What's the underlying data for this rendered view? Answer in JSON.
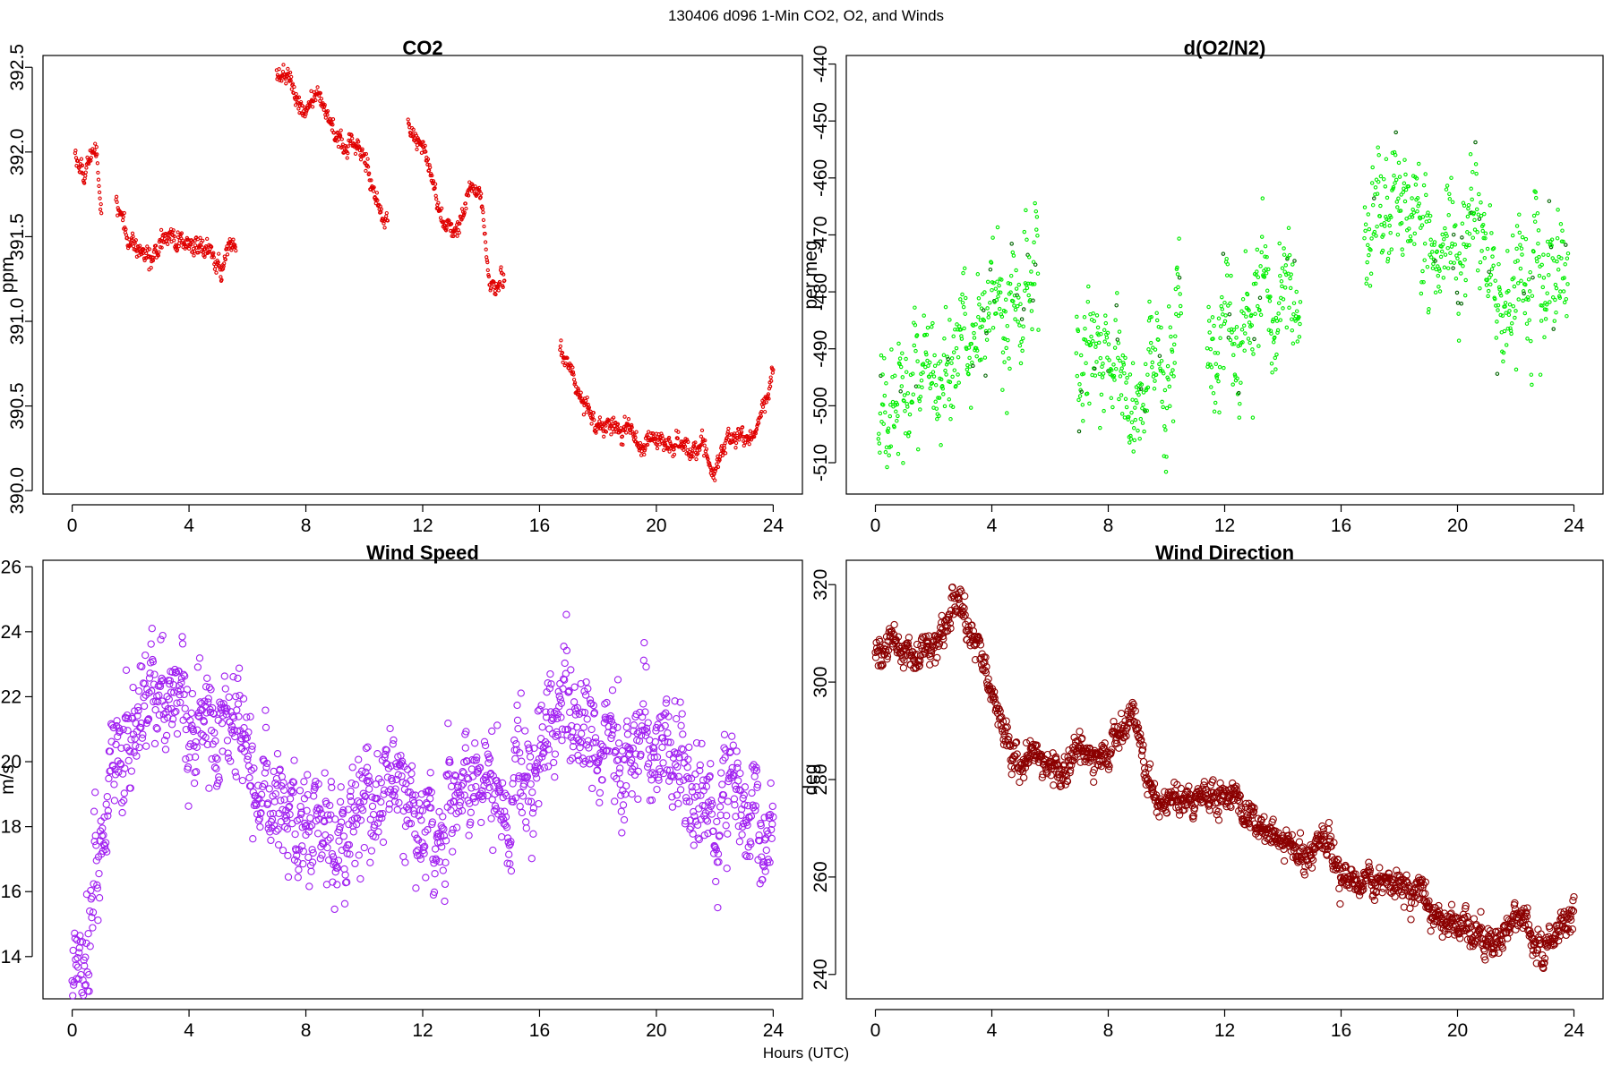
{
  "figure": {
    "suptitle": "130406   d096   1-Min CO2, O2, and Winds",
    "xlabel": "Hours (UTC)"
  },
  "chart_data": [
    {
      "type": "scatter",
      "title": "CO2",
      "ylabel": "ppm",
      "xlim": [
        -1,
        25
      ],
      "ylim": [
        389.98,
        392.57
      ],
      "xticks": [
        0,
        4,
        8,
        12,
        16,
        20,
        24
      ],
      "yticks": [
        390.0,
        390.5,
        391.0,
        391.5,
        392.0,
        392.5
      ],
      "ytick_labels": [
        "390.0",
        "390.5",
        "391.0",
        "391.5",
        "392.0",
        "392.5"
      ],
      "ytick_rotated": true,
      "color": "#e00000",
      "marker_size": 1.6,
      "segments": [
        {
          "x": [
            0.1,
            0.4,
            0.8,
            1.0
          ],
          "y": [
            392.0,
            391.85,
            392.05,
            391.65
          ]
        },
        {
          "x": [
            1.5,
            2.0,
            2.4,
            2.7,
            3.0,
            3.4,
            3.8,
            4.2,
            4.7,
            5.1,
            5.3,
            5.6
          ],
          "y": [
            391.7,
            391.45,
            391.4,
            391.35,
            391.45,
            391.5,
            391.5,
            391.45,
            391.4,
            391.3,
            391.45,
            391.5
          ]
        },
        {
          "x": [
            7.0,
            7.4,
            7.9,
            8.5,
            8.9,
            9.3,
            9.7,
            10.1,
            10.4,
            10.8
          ],
          "y": [
            392.45,
            392.45,
            392.25,
            392.3,
            392.15,
            392.05,
            392.0,
            391.95,
            391.7,
            391.6
          ]
        },
        {
          "x": [
            11.5,
            11.9,
            12.3,
            12.7,
            13.0,
            13.3,
            13.6,
            14.0,
            14.3,
            14.8
          ],
          "y": [
            392.15,
            392.05,
            391.85,
            391.6,
            391.5,
            391.6,
            391.8,
            391.75,
            391.2,
            391.25
          ]
        },
        {
          "x": [
            16.7,
            17.0,
            17.5,
            18.0,
            18.5,
            19.0,
            19.5,
            19.9,
            20.3,
            20.8,
            21.2,
            21.6,
            22.0,
            22.4,
            22.9,
            23.3,
            23.7,
            24.0
          ],
          "y": [
            390.85,
            390.75,
            390.5,
            390.4,
            390.35,
            390.4,
            390.25,
            390.35,
            390.25,
            390.3,
            390.2,
            390.3,
            390.1,
            390.3,
            390.3,
            390.35,
            390.5,
            390.75
          ]
        }
      ],
      "segment_noise": 0.04
    },
    {
      "type": "scatter",
      "title": "d(O2/N2)",
      "ylabel": "per meg",
      "xlim": [
        -1,
        25
      ],
      "ylim": [
        -515.5,
        -438.5
      ],
      "xticks": [
        0,
        4,
        8,
        12,
        16,
        20,
        24
      ],
      "yticks": [
        -510,
        -500,
        -490,
        -480,
        -470,
        -460,
        -450,
        -440
      ],
      "ytick_labels": [
        "-510",
        "-500",
        "-490",
        "-480",
        "-470",
        "-460",
        "-450",
        "-440"
      ],
      "ytick_rotated": true,
      "color": "#00ee00",
      "accent_color": "#006400",
      "marker_size": 1.7,
      "segments": [
        {
          "x": [
            0.1,
            0.6,
            1.0,
            1.6,
            2.2,
            2.8,
            3.4,
            4.0,
            4.6,
            5.0,
            5.6
          ],
          "y": [
            -505,
            -500,
            -496,
            -492,
            -491,
            -489,
            -487,
            -485,
            -482,
            -479,
            -476
          ]
        },
        {
          "x": [
            6.9,
            7.4,
            8.0,
            8.5,
            9.0,
            9.5,
            10.0,
            10.5
          ],
          "y": [
            -489,
            -490,
            -491,
            -493,
            -495,
            -497,
            -494,
            -488
          ]
        },
        {
          "x": [
            11.4,
            11.9,
            12.5,
            13.0,
            13.5,
            14.0,
            14.6
          ],
          "y": [
            -490,
            -488,
            -487,
            -485,
            -486,
            -485,
            -482
          ]
        },
        {
          "x": [
            16.8,
            17.3,
            17.8,
            18.3,
            18.8,
            19.3,
            19.8,
            20.3,
            20.8,
            21.3,
            21.8,
            22.3,
            22.8,
            23.3,
            23.8
          ],
          "y": [
            -470,
            -466,
            -463,
            -466,
            -470,
            -473,
            -473,
            -475,
            -475,
            -476,
            -478,
            -477,
            -480,
            -483,
            -484
          ]
        }
      ],
      "segment_noise": 7.5
    },
    {
      "type": "scatter",
      "title": "Wind Speed",
      "ylabel": "m/s",
      "xlim": [
        -1,
        25
      ],
      "ylim": [
        12.7,
        26.2
      ],
      "xticks": [
        0,
        4,
        8,
        12,
        16,
        20,
        24
      ],
      "yticks": [
        14,
        16,
        18,
        20,
        22,
        24,
        26
      ],
      "ytick_labels": [
        "14",
        "16",
        "18",
        "20",
        "22",
        "24",
        "26"
      ],
      "ytick_rotated": false,
      "color": "#a020f0",
      "marker_size": 3.6,
      "segments": [
        {
          "x": [
            0.0,
            0.5,
            1.0,
            1.5,
            2.0,
            2.5,
            3.0,
            3.5,
            4.0,
            4.5,
            5.0,
            5.5,
            6.0,
            6.5,
            7.0,
            7.5,
            8.0,
            8.5,
            9.0,
            9.5,
            10.0,
            10.5,
            11.0,
            11.5,
            12.0,
            12.5,
            13.0,
            13.5,
            14.0,
            14.5,
            15.0,
            15.5,
            16.0,
            16.5,
            17.0,
            17.5,
            18.0,
            18.5,
            19.0,
            19.5,
            20.0,
            20.5,
            21.0,
            21.5,
            22.0,
            22.5,
            23.0,
            23.5,
            24.0
          ],
          "y": [
            14.0,
            15.0,
            17.5,
            19.5,
            21.0,
            22.0,
            22.0,
            21.5,
            21.5,
            21.5,
            21.5,
            21.0,
            20.0,
            19.0,
            18.5,
            18.0,
            17.5,
            17.5,
            17.5,
            17.5,
            18.0,
            18.5,
            18.5,
            18.5,
            18.5,
            18.5,
            18.5,
            19.5,
            19.5,
            19.5,
            19.0,
            19.5,
            20.5,
            20.5,
            21.5,
            21.0,
            20.0,
            20.0,
            20.5,
            20.5,
            20.5,
            20.5,
            19.5,
            19.0,
            18.5,
            19.5,
            19.0,
            18.0,
            17.5
          ]
        }
      ],
      "segment_noise": 1.2
    },
    {
      "type": "scatter",
      "title": "Wind Direction",
      "ylabel": "deg",
      "xlim": [
        -1,
        25
      ],
      "ylim": [
        235,
        325
      ],
      "xticks": [
        0,
        4,
        8,
        12,
        16,
        20,
        24
      ],
      "yticks": [
        240,
        260,
        280,
        300,
        320
      ],
      "ytick_labels": [
        "240",
        "260",
        "280",
        "300",
        "320"
      ],
      "ytick_rotated": true,
      "color": "#8b0000",
      "marker_size": 3.6,
      "segments": [
        {
          "x": [
            0.0,
            0.5,
            1.0,
            1.5,
            2.0,
            2.5,
            3.0,
            3.5,
            4.0,
            4.5,
            5.0,
            5.5,
            6.0,
            6.5,
            7.0,
            7.5,
            8.0,
            8.5,
            9.0,
            9.5,
            10.0,
            10.5,
            11.0,
            11.5,
            12.0,
            12.5,
            13.0,
            13.5,
            14.0,
            14.5,
            15.0,
            15.5,
            16.0,
            16.5,
            17.0,
            17.5,
            18.0,
            18.5,
            19.0,
            19.5,
            20.0,
            20.5,
            21.0,
            21.5,
            22.0,
            22.5,
            23.0,
            23.5,
            24.0
          ],
          "y": [
            305,
            306,
            305,
            306,
            308,
            314,
            316,
            306,
            299,
            288,
            283,
            285,
            283,
            282,
            288,
            284,
            282,
            292,
            291,
            276,
            275,
            275,
            275,
            276,
            275,
            274,
            272,
            270,
            267,
            264,
            264,
            265,
            259,
            259,
            260,
            258,
            258,
            257,
            254,
            252,
            251,
            249,
            246,
            246,
            255,
            248,
            247,
            249,
            254
          ]
        }
      ],
      "segment_noise": 2.3
    }
  ]
}
